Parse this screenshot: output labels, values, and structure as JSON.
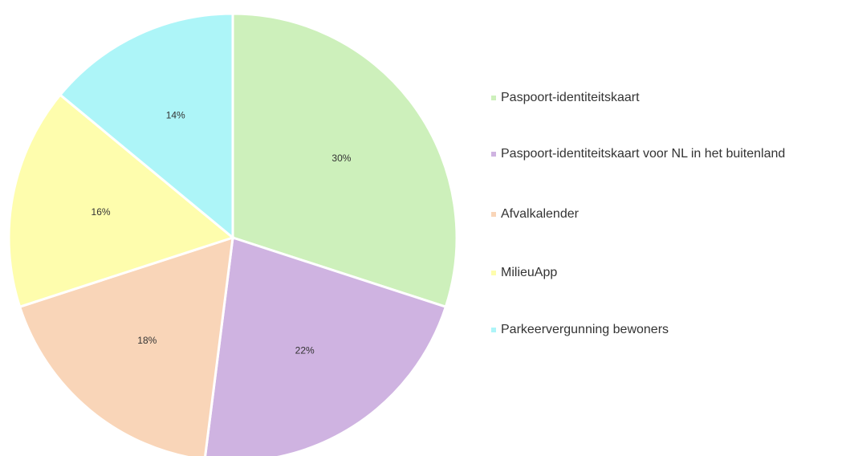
{
  "chart_data": {
    "type": "pie",
    "categories": [
      "Paspoort-identiteitskaart",
      "Paspoort-identiteitskaart voor NL in het buitenland",
      "Afvalkalender",
      "MilieuApp",
      "Parkeervergunning bewoners"
    ],
    "values": [
      30,
      22,
      18,
      16,
      14
    ],
    "value_labels": [
      "30%",
      "22%",
      "18%",
      "16%",
      "14%"
    ],
    "colors": [
      "#cdf0bb",
      "#cfb3e1",
      "#f9d5b8",
      "#fefdad",
      "#adf5f8"
    ],
    "legend": "right"
  }
}
